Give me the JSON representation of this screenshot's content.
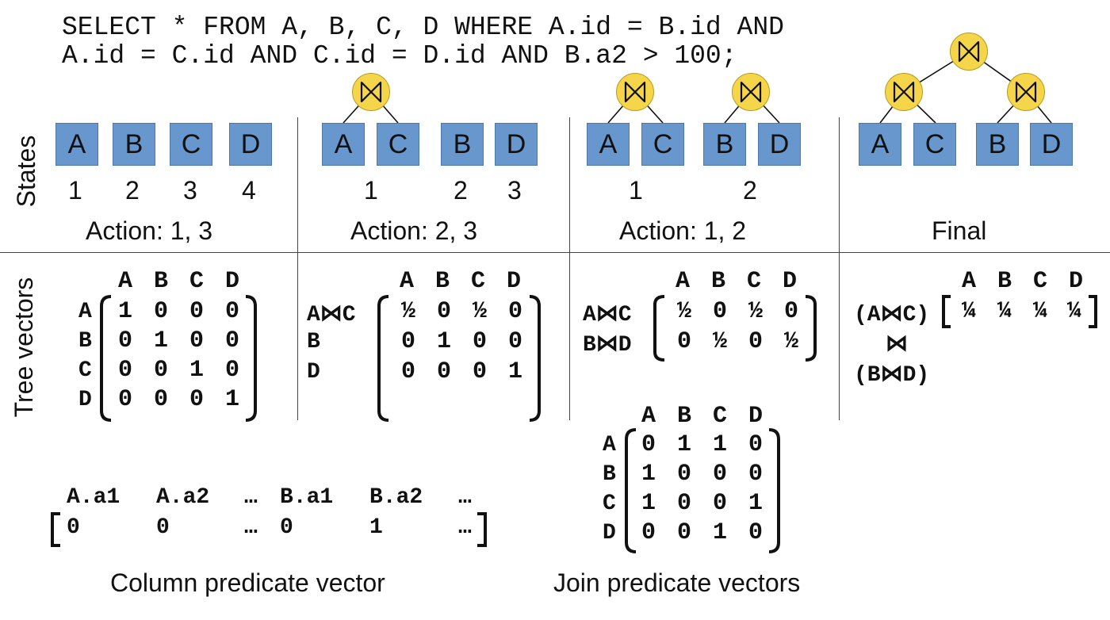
{
  "query": {
    "line1": "SELECT * FROM A, B, C, D WHERE A.id = B.id AND",
    "line2": "A.id = C.id AND C.id = D.id AND B.a2 > 100;"
  },
  "section_labels": {
    "states": "States",
    "tree_vectors": "Tree vectors"
  },
  "join_symbol": "⋈",
  "colors": {
    "relation_box": "#6897cd",
    "join_node": "#f5d54a"
  },
  "states": [
    {
      "relations": [
        "A",
        "B",
        "C",
        "D"
      ],
      "indices": [
        "1",
        "2",
        "3",
        "4"
      ],
      "action": "Action: 1, 3"
    },
    {
      "relations": [
        "A",
        "C",
        "B",
        "D"
      ],
      "indices": [
        "1",
        "2",
        "3"
      ],
      "action": "Action: 2, 3"
    },
    {
      "relations": [
        "A",
        "C",
        "B",
        "D"
      ],
      "indices": [
        "1",
        "2"
      ],
      "action": "Action: 1, 2"
    },
    {
      "relations": [
        "A",
        "C",
        "B",
        "D"
      ],
      "indices": [],
      "action": "Final"
    }
  ],
  "tree_vectors": [
    {
      "columns": [
        "A",
        "B",
        "C",
        "D"
      ],
      "row_labels": [
        "A",
        "B",
        "C",
        "D"
      ],
      "rows": [
        [
          "1",
          "0",
          "0",
          "0"
        ],
        [
          "0",
          "1",
          "0",
          "0"
        ],
        [
          "0",
          "0",
          "1",
          "0"
        ],
        [
          "0",
          "0",
          "0",
          "1"
        ]
      ]
    },
    {
      "columns": [
        "A",
        "B",
        "C",
        "D"
      ],
      "row_labels": [
        "A⋈C",
        "B",
        "D"
      ],
      "rows": [
        [
          "½",
          "0",
          "½",
          "0"
        ],
        [
          "0",
          "1",
          "0",
          "0"
        ],
        [
          "0",
          "0",
          "0",
          "1"
        ]
      ]
    },
    {
      "columns": [
        "A",
        "B",
        "C",
        "D"
      ],
      "row_labels": [
        "A⋈C",
        "B⋈D"
      ],
      "rows": [
        [
          "½",
          "0",
          "½",
          "0"
        ],
        [
          "0",
          "½",
          "0",
          "½"
        ]
      ]
    },
    {
      "columns": [
        "A",
        "B",
        "C",
        "D"
      ],
      "row_labels": [
        "(A⋈C)",
        "⋈",
        "(B⋈D)"
      ],
      "rows": [
        [
          "¼",
          "¼",
          "¼",
          "¼"
        ]
      ]
    }
  ],
  "column_predicate": {
    "headers": [
      "A.a1",
      "A.a2",
      "…",
      "B.a1",
      "B.a2",
      "…"
    ],
    "values": [
      "0",
      "0",
      "…",
      "0",
      "1",
      "…"
    ],
    "caption": "Column predicate vector"
  },
  "join_predicate": {
    "columns": [
      "A",
      "B",
      "C",
      "D"
    ],
    "row_labels": [
      "A",
      "B",
      "C",
      "D"
    ],
    "rows": [
      [
        "0",
        "1",
        "1",
        "0"
      ],
      [
        "1",
        "0",
        "0",
        "0"
      ],
      [
        "1",
        "0",
        "0",
        "1"
      ],
      [
        "0",
        "0",
        "1",
        "0"
      ]
    ],
    "caption": "Join predicate vectors"
  }
}
